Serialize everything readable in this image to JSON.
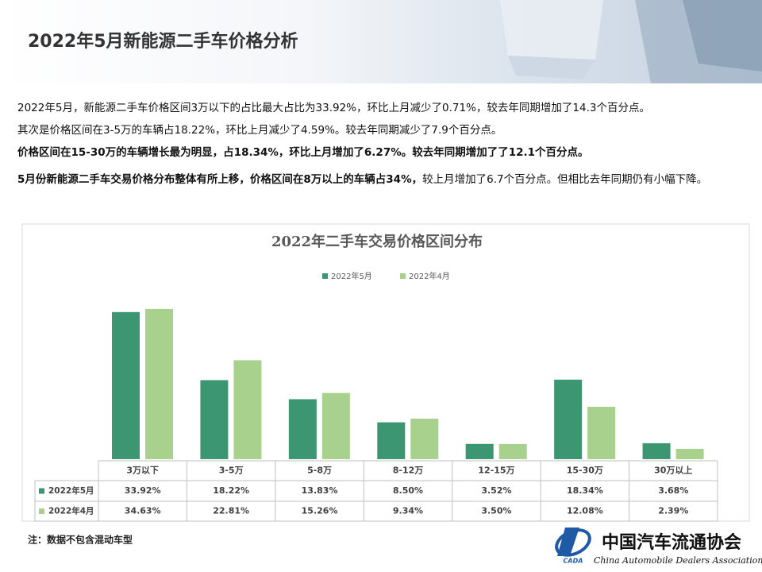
{
  "header": {
    "title": "2022年5月新能源二手车价格分析"
  },
  "text": {
    "paragraphs": [
      [
        {
          "text": "2022年5月，新能源二手车价格区间3万以下的占比最大占比为33.92%，环比上月减少了0.71%，较去年同期增加了14.3个百分点。",
          "bold": false
        }
      ],
      [
        {
          "text": "其次是价格区间在3-5万的车辆占18.22%，环比上月减少了4.59%。较去年同期减少了7.9个百分点。",
          "bold": false
        }
      ],
      [
        {
          "text": "价格区间在15-30万的车辆增长最为明显，占18.34%，环比上月增加了6.27%。较去年同期增加了了12.1个百分点。",
          "bold": true
        }
      ],
      [
        {
          "text": "5月份新能源二手车交易价格分布整体有所上移，价格区间在8万以上的车辆占34%，",
          "bold": true
        },
        {
          "text": "较上月增加了6.7个百分点。但相比去年同期仍有小幅下降。",
          "bold": false
        }
      ]
    ]
  },
  "chart_data": {
    "type": "bar",
    "title": "2022年二手车交易价格区间分布",
    "categories": [
      "3万以下",
      "3-5万",
      "5-8万",
      "8-12万",
      "12-15万",
      "15-30万",
      "30万以上"
    ],
    "series": [
      {
        "name": "2022年5月",
        "color": "#3d9672",
        "values": [
          33.92,
          18.22,
          13.83,
          8.5,
          3.52,
          18.34,
          3.68
        ],
        "value_labels": [
          "33.92%",
          "18.22%",
          "13.83%",
          "8.50%",
          "3.52%",
          "18.34%",
          "3.68%"
        ]
      },
      {
        "name": "2022年4月",
        "color": "#a9d18e",
        "values": [
          34.63,
          22.81,
          15.26,
          9.34,
          3.5,
          12.08,
          2.39
        ],
        "value_labels": [
          "34.63%",
          "22.81%",
          "15.26%",
          "9.34%",
          "3.50%",
          "12.08%",
          "2.39%"
        ]
      }
    ],
    "ylim": [
      0,
      40
    ]
  },
  "note": "注：数据不包含混动车型",
  "logo": {
    "abbr": "CADA",
    "name_cn": "中国汽车流通协会",
    "name_en": "China Automobile Dealers Association"
  }
}
